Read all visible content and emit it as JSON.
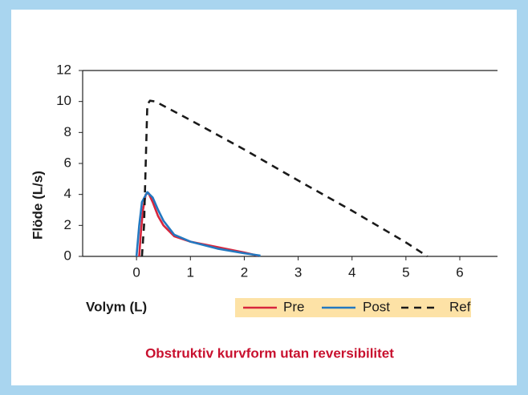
{
  "chart_data": {
    "type": "line",
    "title": "Obstruktiv kurvform utan reversibilitet",
    "xlabel": "Volym (L)",
    "ylabel": "Flöde (L/s)",
    "xlim": [
      -1,
      6.7
    ],
    "xticks": [
      0,
      1,
      2,
      3,
      4,
      5,
      6
    ],
    "ylim": [
      0,
      12
    ],
    "yticks": [
      0,
      2,
      4,
      6,
      8,
      10,
      12
    ],
    "series": [
      {
        "name": "Pre",
        "color": "#d7263d",
        "style": "solid",
        "x": [
          0.05,
          0.08,
          0.12,
          0.17,
          0.22,
          0.3,
          0.4,
          0.5,
          0.7,
          1.0,
          1.5,
          2.0,
          2.25
        ],
        "values": [
          0,
          1.5,
          3,
          4,
          4.1,
          3.5,
          2.6,
          2.0,
          1.3,
          0.95,
          0.6,
          0.25,
          0.05
        ]
      },
      {
        "name": "Post",
        "color": "#2378c0",
        "style": "solid",
        "x": [
          0,
          0.05,
          0.1,
          0.2,
          0.3,
          0.4,
          0.5,
          0.7,
          1.0,
          1.5,
          2.0,
          2.3
        ],
        "values": [
          0,
          2,
          3.5,
          4.15,
          3.8,
          3.0,
          2.3,
          1.4,
          0.95,
          0.5,
          0.2,
          0.05
        ]
      },
      {
        "name": "Ref",
        "color": "#1a1a1a",
        "style": "dashed",
        "x": [
          0.1,
          0.14,
          0.17,
          0.2,
          0.25,
          0.35,
          1,
          2,
          3,
          4,
          5,
          5.4
        ],
        "values": [
          0,
          2,
          6,
          9.8,
          10.05,
          10.0,
          8.8,
          6.9,
          4.9,
          2.95,
          0.9,
          0
        ]
      }
    ]
  }
}
